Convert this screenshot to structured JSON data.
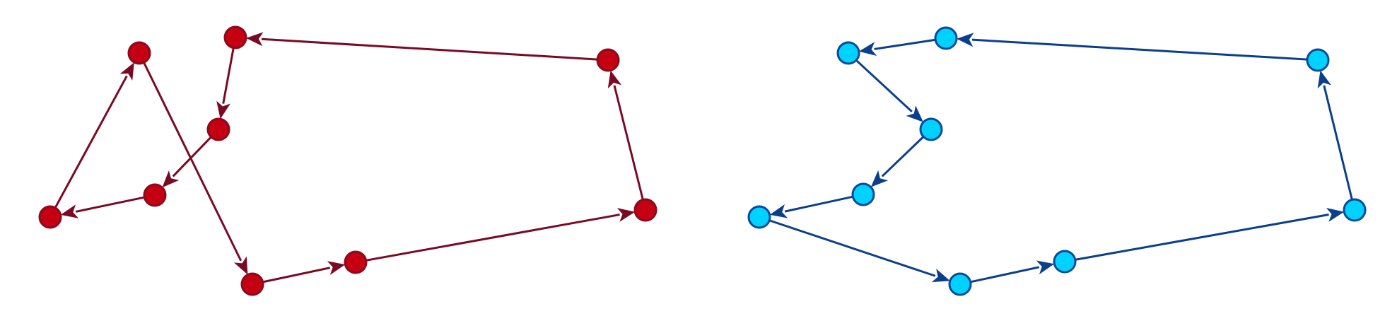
{
  "diagrams": [
    {
      "id": "left-graph",
      "node_fill": "#c40012",
      "node_stroke": "#8b0a1e",
      "edge_color": "#7a0a24",
      "nodes": [
        {
          "id": "n1"
        },
        {
          "id": "n2"
        },
        {
          "id": "n3"
        },
        {
          "id": "n4"
        },
        {
          "id": "n5"
        },
        {
          "id": "n6"
        },
        {
          "id": "n7"
        },
        {
          "id": "n8"
        },
        {
          "id": "n9"
        },
        {
          "id": "n10"
        }
      ],
      "edges": [
        [
          "n4",
          "n1"
        ],
        [
          "n1",
          "n7"
        ],
        [
          "n7",
          "n8"
        ],
        [
          "n8",
          "n10"
        ],
        [
          "n10",
          "n9"
        ],
        [
          "n9",
          "n2"
        ],
        [
          "n2",
          "n6"
        ],
        [
          "n6",
          "n5"
        ],
        [
          "n5",
          "n4"
        ]
      ]
    },
    {
      "id": "right-graph",
      "node_fill": "#00d2ff",
      "node_stroke": "#0a4a9a",
      "edge_color": "#0b3f8c",
      "nodes": [
        {
          "id": "m1"
        },
        {
          "id": "m2"
        },
        {
          "id": "m3"
        },
        {
          "id": "m4"
        },
        {
          "id": "m5"
        },
        {
          "id": "m6"
        },
        {
          "id": "m7"
        },
        {
          "id": "m8"
        },
        {
          "id": "m9"
        },
        {
          "id": "m10"
        }
      ],
      "edges": [
        [
          "m4",
          "m7"
        ],
        [
          "m7",
          "m8"
        ],
        [
          "m8",
          "m10"
        ],
        [
          "m10",
          "m9"
        ],
        [
          "m9",
          "m2"
        ],
        [
          "m2",
          "m1"
        ],
        [
          "m1",
          "m6"
        ],
        [
          "m6",
          "m5"
        ],
        [
          "m5",
          "m4"
        ]
      ]
    }
  ]
}
